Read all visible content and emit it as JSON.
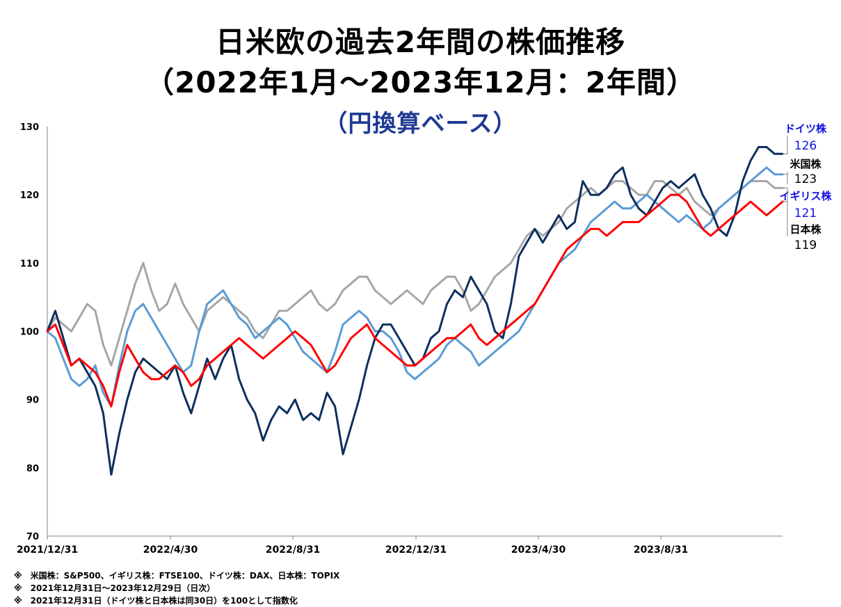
{
  "chart_data": {
    "type": "line",
    "title": "日米欧の過去2年間の株価推移",
    "subtitle": "（2022年1月～2023年12月：2年間）",
    "subtitle2": "（円換算ベース）",
    "ylim": [
      70,
      130
    ],
    "yticks": [
      "70",
      "80",
      "90",
      "100",
      "110",
      "120",
      "130"
    ],
    "xticks": [
      "2021/12/31",
      "2022/4/30",
      "2022/8/31",
      "2022/12/31",
      "2023/4/30",
      "2023/8/31"
    ],
    "grid": false,
    "series": [
      {
        "name": "ドイツ株",
        "end_label": "126",
        "color": "#0d2f5e",
        "name_color": "#1010e0",
        "values": [
          100,
          103,
          99,
          95,
          96,
          94,
          92,
          88,
          79,
          85,
          90,
          94,
          96,
          95,
          94,
          93,
          95,
          91,
          88,
          92,
          96,
          93,
          96,
          98,
          93,
          90,
          88,
          84,
          87,
          89,
          88,
          90,
          87,
          88,
          87,
          91,
          89,
          82,
          86,
          90,
          95,
          99,
          101,
          101,
          99,
          97,
          95,
          96,
          99,
          100,
          104,
          106,
          105,
          108,
          106,
          104,
          100,
          99,
          104,
          111,
          113,
          115,
          113,
          115,
          117,
          115,
          116,
          122,
          120,
          120,
          121,
          123,
          124,
          120,
          118,
          117,
          119,
          121,
          122,
          121,
          122,
          123,
          120,
          118,
          115,
          114,
          117,
          122,
          125,
          127,
          127,
          126,
          126
        ]
      },
      {
        "name": "米国株",
        "end_label": "123",
        "color": "#5b9bd5",
        "name_color": "#000000",
        "values": [
          100,
          99,
          96,
          93,
          92,
          93,
          95,
          91,
          89,
          95,
          100,
          103,
          104,
          102,
          100,
          98,
          96,
          94,
          95,
          100,
          104,
          105,
          106,
          104,
          102,
          101,
          99,
          100,
          101,
          102,
          101,
          99,
          97,
          96,
          95,
          94,
          97,
          101,
          102,
          103,
          102,
          100,
          100,
          99,
          97,
          94,
          93,
          94,
          95,
          96,
          98,
          99,
          98,
          97,
          95,
          96,
          97,
          98,
          99,
          100,
          102,
          104,
          106,
          108,
          110,
          111,
          112,
          114,
          116,
          117,
          118,
          119,
          118,
          118,
          119,
          120,
          119,
          118,
          117,
          116,
          117,
          116,
          115,
          116,
          118,
          119,
          120,
          121,
          122,
          123,
          124,
          123,
          123
        ]
      },
      {
        "name": "イギリス株",
        "end_label": "121",
        "color": "#a6a6a6",
        "name_color": "#1010e0",
        "values": [
          100,
          102,
          101,
          100,
          102,
          104,
          103,
          98,
          95,
          99,
          103,
          107,
          110,
          106,
          103,
          104,
          107,
          104,
          102,
          100,
          103,
          104,
          105,
          104,
          103,
          102,
          100,
          99,
          101,
          103,
          103,
          104,
          105,
          106,
          104,
          103,
          104,
          106,
          107,
          108,
          108,
          106,
          105,
          104,
          105,
          106,
          105,
          104,
          106,
          107,
          108,
          108,
          106,
          103,
          104,
          106,
          108,
          109,
          110,
          112,
          114,
          115,
          114,
          115,
          116,
          118,
          119,
          120,
          121,
          120,
          121,
          122,
          122,
          121,
          120,
          120,
          122,
          122,
          121,
          120,
          121,
          119,
          118,
          117,
          118,
          119,
          120,
          121,
          122,
          122,
          122,
          121,
          121
        ]
      },
      {
        "name": "日本株",
        "end_label": "119",
        "color": "#ff0000",
        "name_color": "#000000",
        "values": [
          100,
          101,
          98,
          95,
          96,
          95,
          94,
          92,
          89,
          94,
          98,
          96,
          94,
          93,
          93,
          94,
          95,
          94,
          92,
          93,
          95,
          96,
          97,
          98,
          99,
          98,
          97,
          96,
          97,
          98,
          99,
          100,
          99,
          98,
          96,
          94,
          95,
          97,
          99,
          100,
          101,
          99,
          98,
          97,
          96,
          95,
          95,
          96,
          97,
          98,
          99,
          99,
          100,
          101,
          99,
          98,
          99,
          100,
          101,
          102,
          103,
          104,
          106,
          108,
          110,
          112,
          113,
          114,
          115,
          115,
          114,
          115,
          116,
          116,
          116,
          117,
          118,
          119,
          120,
          120,
          119,
          117,
          115,
          114,
          115,
          116,
          117,
          118,
          119,
          118,
          117,
          118,
          119
        ]
      }
    ]
  },
  "notes": [
    "※　米国株：S&P500、イギリス株：FTSE100、ドイツ株：DAX、日本株：TOPIX",
    "※　2021年12月31日～2023年12月29日（日次）",
    "※　2021年12月31日（ドイツ株と日本株は同30日）を100として指数化"
  ]
}
